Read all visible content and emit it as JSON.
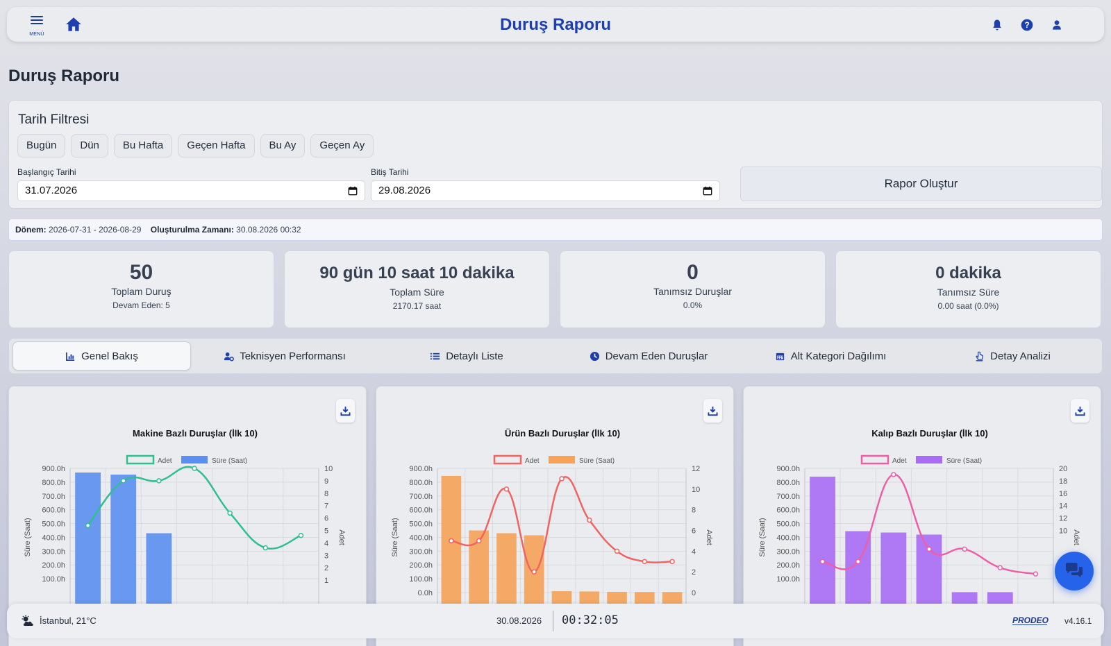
{
  "header": {
    "menu_label": "MENÜ",
    "title": "Duruş Raporu",
    "icons": [
      "menu-icon",
      "home-icon",
      "bell-icon",
      "help-icon",
      "user-icon"
    ]
  },
  "page": {
    "title": "Duruş Raporu"
  },
  "filter": {
    "title": "Tarih Filtresi",
    "quick_buttons": [
      "Bugün",
      "Dün",
      "Bu Hafta",
      "Geçen Hafta",
      "Bu Ay",
      "Geçen Ay"
    ],
    "start_label": "Başlangıç Tarihi",
    "start_value": "31.07.2026",
    "end_label": "Bitiş Tarihi",
    "end_value": "29.08.2026",
    "submit_label": "Rapor Oluştur"
  },
  "period": {
    "donem_label": "Dönem:",
    "donem_value": "2026-07-31 - 2026-08-29",
    "created_label": "Oluşturulma Zamanı:",
    "created_value": "30.08.2026 00:32"
  },
  "stats": [
    {
      "value": "50",
      "label": "Toplam Duruş",
      "sub": "Devam Eden: 5"
    },
    {
      "value": "90 gün 10 saat 10 dakika",
      "label": "Toplam Süre",
      "sub": "2170.17 saat"
    },
    {
      "value": "0",
      "label": "Tanımsız Duruşlar",
      "sub": "0.0%"
    },
    {
      "value": "0 dakika",
      "label": "Tanımsız Süre",
      "sub": "0.00 saat (0.0%)"
    }
  ],
  "tabs": [
    {
      "label": "Genel Bakış",
      "icon": "chart-icon",
      "active": true
    },
    {
      "label": "Teknisyen Performansı",
      "icon": "users-gear-icon",
      "active": false
    },
    {
      "label": "Detaylı Liste",
      "icon": "list-icon",
      "active": false
    },
    {
      "label": "Devam Eden Duruşlar",
      "icon": "clock-icon",
      "active": false
    },
    {
      "label": "Alt Kategori Dağılımı",
      "icon": "calendar-icon",
      "active": false
    },
    {
      "label": "Detay Analizi",
      "icon": "hand-pointer-icon",
      "active": false
    }
  ],
  "chart_data": [
    {
      "type": "bar",
      "title": "Makine Bazlı Duruşlar (İlk 10)",
      "ylabel": "Süre (Saat)",
      "y2label": "Adet",
      "ylim": [
        0,
        900
      ],
      "y2lim": [
        0,
        10
      ],
      "yticks": [
        "100.0h",
        "200.0h",
        "300.0h",
        "400.0h",
        "500.0h",
        "600.0h",
        "700.0h",
        "800.0h",
        "900.0h"
      ],
      "y2ticks": [
        "1",
        "2",
        "3",
        "4",
        "5",
        "6",
        "7",
        "8",
        "9",
        "10"
      ],
      "legend_position": "top",
      "series": [
        {
          "name": "Adet",
          "kind": "line",
          "axis": "right",
          "color": "#2fbf8f",
          "values": [
            5.4,
            9,
            9,
            10,
            6.4,
            3.6,
            4.6
          ]
        },
        {
          "name": "Süre (Saat)",
          "kind": "bar",
          "axis": "left",
          "color": "#5b8ff0",
          "values": [
            870,
            855,
            430,
            0,
            0,
            0,
            0
          ]
        }
      ]
    },
    {
      "type": "bar",
      "title": "Ürün Bazlı Duruşlar (İlk 10)",
      "ylabel": "Süre (Saat)",
      "y2label": "Adet",
      "ylim": [
        0,
        900
      ],
      "y2lim": [
        0,
        12
      ],
      "yticks": [
        "0.0h",
        "100.0h",
        "200.0h",
        "300.0h",
        "400.0h",
        "500.0h",
        "600.0h",
        "700.0h",
        "800.0h",
        "900.0h"
      ],
      "y2ticks": [
        "0",
        "2",
        "4",
        "6",
        "8",
        "10",
        "12"
      ],
      "legend_position": "top",
      "series": [
        {
          "name": "Adet",
          "kind": "line",
          "axis": "right",
          "color": "#ef6461",
          "values": [
            5,
            5,
            10,
            2,
            11,
            7,
            4,
            3,
            3
          ]
        },
        {
          "name": "Süre (Saat)",
          "kind": "bar",
          "axis": "left",
          "color": "#f6a257",
          "values": [
            845,
            450,
            430,
            415,
            10,
            8,
            5,
            4,
            4
          ]
        }
      ]
    },
    {
      "type": "bar",
      "title": "Kalıp Bazlı Duruşlar (İlk 10)",
      "ylabel": "Süre (Saat)",
      "y2label": "Adet",
      "ylim": [
        0,
        900
      ],
      "y2lim": [
        0,
        20
      ],
      "yticks": [
        "100.0h",
        "200.0h",
        "300.0h",
        "400.0h",
        "500.0h",
        "600.0h",
        "700.0h",
        "800.0h",
        "900.0h"
      ],
      "y2ticks": [
        "10",
        "12",
        "14",
        "16",
        "18",
        "20"
      ],
      "legend_position": "top",
      "series": [
        {
          "name": "Adet",
          "kind": "line",
          "axis": "right",
          "color": "#ec5fa6",
          "values": [
            5,
            5,
            19,
            7,
            7,
            4,
            3
          ]
        },
        {
          "name": "Süre (Saat)",
          "kind": "bar",
          "axis": "left",
          "color": "#a96cf4",
          "values": [
            840,
            445,
            435,
            420,
            3,
            3,
            0
          ]
        }
      ]
    }
  ],
  "footer": {
    "weather": "İstanbul, 21°C",
    "date": "30.08.2026",
    "time": "00:32:05",
    "logo": "PRODEO",
    "version": "v4.16.1"
  }
}
